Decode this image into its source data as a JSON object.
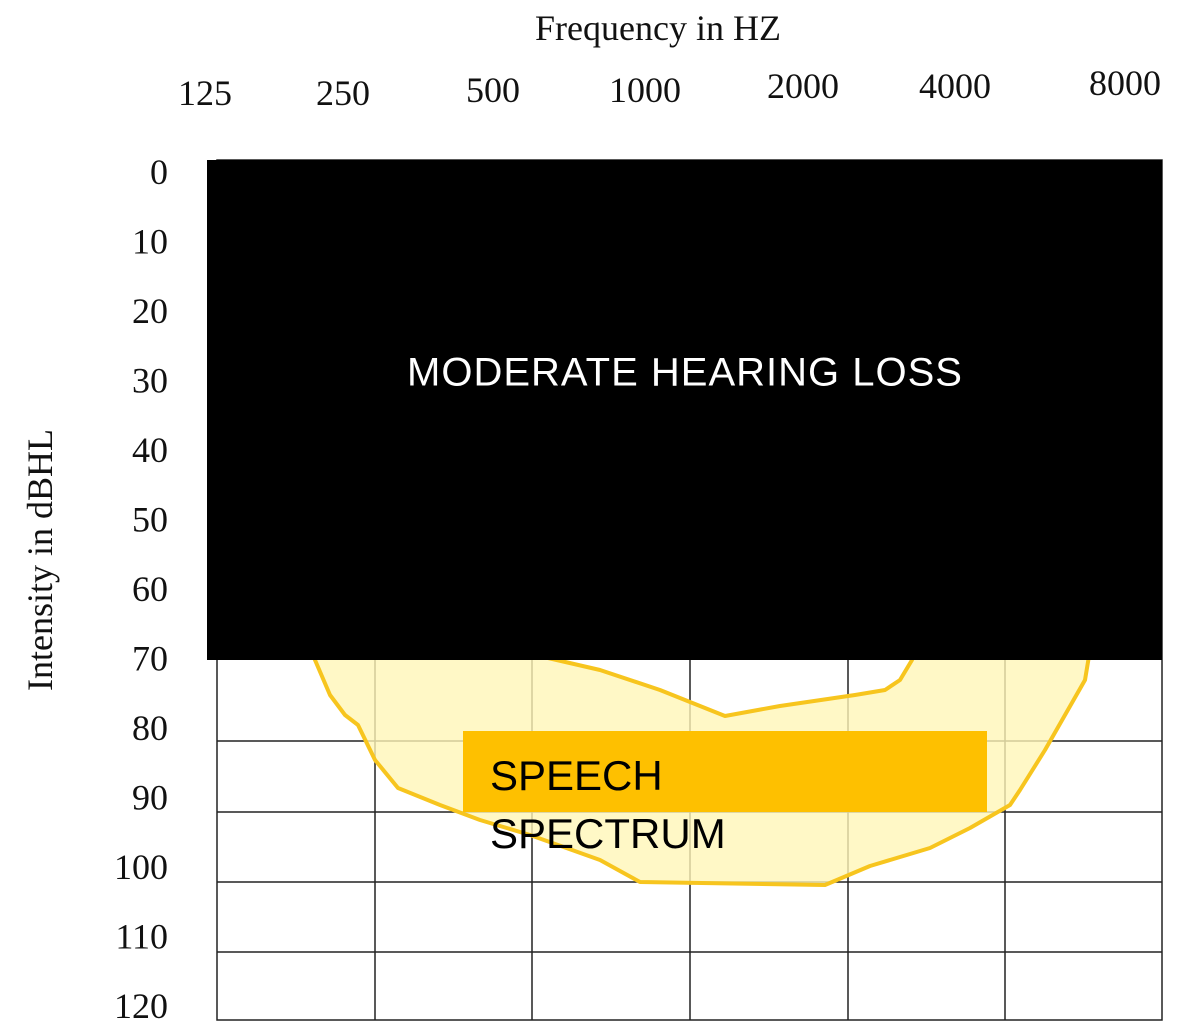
{
  "x_title": "Frequency in HZ",
  "x_labels": [
    "125",
    "250",
    "500",
    "1000",
    "2000",
    "4000",
    "8000"
  ],
  "y_title": "Intensity in dBHL",
  "y_labels": [
    "0",
    "10",
    "20",
    "30",
    "40",
    "50",
    "60",
    "70",
    "80",
    "90",
    "100",
    "110",
    "120"
  ],
  "loss_region": {
    "label": "MODERATE HEARING LOSS"
  },
  "speech_region": {
    "label_lines": [
      "SPEECH",
      "SPECTRUM"
    ]
  }
}
